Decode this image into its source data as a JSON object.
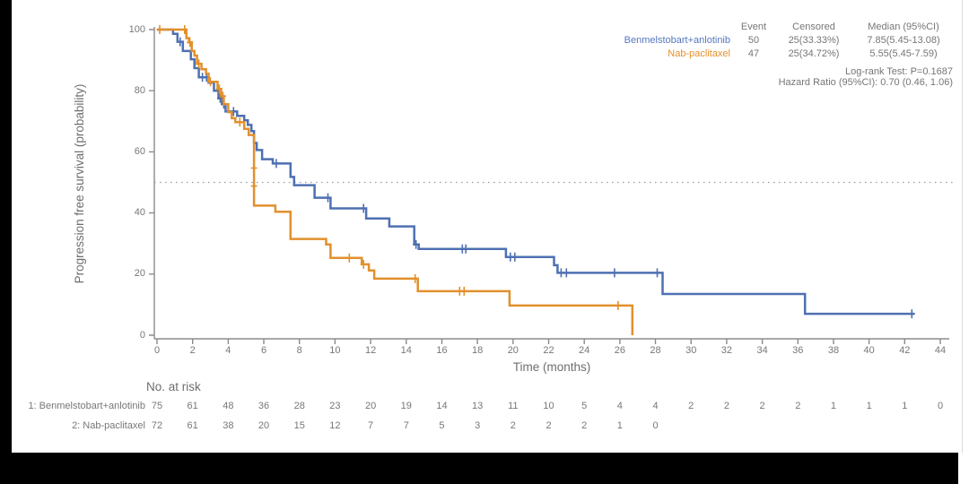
{
  "frame": {
    "background": "#000000",
    "panel": "#ffffff"
  },
  "colors": {
    "series1": "#4e70b2",
    "series2": "#e2902c",
    "axis": "#8b8b8b",
    "text": "#767676",
    "reference_line": "#9a9a9a"
  },
  "chart_data": {
    "type": "line",
    "subtype": "kaplan-meier-step",
    "title": "",
    "xlabel": "Time (months)",
    "ylabel": "Progression free survival (probability)",
    "xlim": [
      0,
      44
    ],
    "ylim": [
      0,
      100
    ],
    "xticks": [
      0,
      2,
      4,
      6,
      8,
      10,
      12,
      14,
      16,
      18,
      20,
      22,
      24,
      26,
      28,
      30,
      32,
      34,
      36,
      38,
      40,
      42,
      44
    ],
    "yticks": [
      0,
      20,
      40,
      60,
      80,
      100
    ],
    "grid": false,
    "reference_line_y": 50,
    "legend_position": "top-right",
    "series": [
      {
        "name": "Benmelstobart+anlotinib",
        "color": "#4e70b2",
        "points": [
          [
            0,
            100
          ],
          [
            0.9,
            98.6
          ],
          [
            1.15,
            96
          ],
          [
            1.45,
            93
          ],
          [
            1.9,
            90.3
          ],
          [
            2.1,
            87.4
          ],
          [
            2.35,
            84.4
          ],
          [
            2.9,
            82.6
          ],
          [
            3.2,
            80
          ],
          [
            3.45,
            77.5
          ],
          [
            3.65,
            75.6
          ],
          [
            3.85,
            73.2
          ],
          [
            4.5,
            71.8
          ],
          [
            4.9,
            70.3
          ],
          [
            5.1,
            68.8
          ],
          [
            5.3,
            66.8
          ],
          [
            5.45,
            62.9
          ],
          [
            5.6,
            60.6
          ],
          [
            5.9,
            57.6
          ],
          [
            6.5,
            56.2
          ],
          [
            7.5,
            51.8
          ],
          [
            7.7,
            49.1
          ],
          [
            8.85,
            45
          ],
          [
            9.75,
            41.5
          ],
          [
            11.75,
            38.2
          ],
          [
            13.05,
            35.6
          ],
          [
            14.45,
            29.7
          ],
          [
            14.7,
            28.2
          ],
          [
            19.6,
            25.6
          ],
          [
            22.3,
            22.9
          ],
          [
            22.5,
            20.4
          ],
          [
            28.4,
            13.5
          ],
          [
            36.4,
            7.0
          ]
        ],
        "curve_end": 42.55,
        "censors": [
          [
            1.3,
            96
          ],
          [
            2.55,
            84.4
          ],
          [
            2.78,
            84.4
          ],
          [
            3.55,
            77.5
          ],
          [
            3.75,
            75.6
          ],
          [
            4.3,
            73.2
          ],
          [
            6.7,
            56.2
          ],
          [
            9.6,
            45
          ],
          [
            11.6,
            41.5
          ],
          [
            14.55,
            29.7
          ],
          [
            17.15,
            28.2
          ],
          [
            17.35,
            28.2
          ],
          [
            19.85,
            25.6
          ],
          [
            20.1,
            25.6
          ],
          [
            22.7,
            20.4
          ],
          [
            23.0,
            20.4
          ],
          [
            25.7,
            20.4
          ],
          [
            28.1,
            20.4
          ],
          [
            42.4,
            7.0
          ]
        ]
      },
      {
        "name": "Nab-paclitaxel",
        "color": "#e2902c",
        "points": [
          [
            0,
            100
          ],
          [
            1.65,
            97.2
          ],
          [
            1.8,
            95.8
          ],
          [
            1.95,
            93
          ],
          [
            2.1,
            91.5
          ],
          [
            2.25,
            88.8
          ],
          [
            2.5,
            87
          ],
          [
            2.75,
            85.6
          ],
          [
            2.9,
            82.9
          ],
          [
            3.4,
            80.6
          ],
          [
            3.6,
            78.2
          ],
          [
            3.75,
            75.6
          ],
          [
            4.0,
            73
          ],
          [
            4.2,
            71
          ],
          [
            4.4,
            69.7
          ],
          [
            4.9,
            67.5
          ],
          [
            5.15,
            65.5
          ],
          [
            5.45,
            42.4
          ],
          [
            6.65,
            40.4
          ],
          [
            7.5,
            31.5
          ],
          [
            9.5,
            29.7
          ],
          [
            9.75,
            25.3
          ],
          [
            11.5,
            23.2
          ],
          [
            11.9,
            21.2
          ],
          [
            12.2,
            18.5
          ],
          [
            14.65,
            14.4
          ],
          [
            19.8,
            9.7
          ],
          [
            26.7,
            0
          ]
        ],
        "curve_end": null,
        "censors": [
          [
            0.15,
            100
          ],
          [
            1.55,
            100
          ],
          [
            1.85,
            95.8
          ],
          [
            2.35,
            88.8
          ],
          [
            3.0,
            82.9
          ],
          [
            3.5,
            80.6
          ],
          [
            3.7,
            78.2
          ],
          [
            4.65,
            69.7
          ],
          [
            5.45,
            54.7
          ],
          [
            5.45,
            48.8
          ],
          [
            10.8,
            25.3
          ],
          [
            11.6,
            23.2
          ],
          [
            14.5,
            18.5
          ],
          [
            17.0,
            14.4
          ],
          [
            17.25,
            14.4
          ],
          [
            25.9,
            9.7
          ]
        ]
      }
    ],
    "legend": {
      "headers": [
        "Event",
        "Censored",
        "Median (95%CI)"
      ],
      "rows": [
        {
          "name": "Benmelstobart+anlotinib",
          "event": "50",
          "censored": "25(33.33%)",
          "median": "7.85(5.45-13.08)"
        },
        {
          "name": "Nab-paclitaxel",
          "event": "47",
          "censored": "25(34.72%)",
          "median": "5.55(5.45-7.59)"
        }
      ]
    },
    "annotations": [
      "Log-rank Test: P=0.1687",
      "Hazard Ratio (95%CI): 0.70 (0.46, 1.06)"
    ],
    "at_risk": {
      "title": "No. at risk",
      "rows": [
        {
          "label": "1: Benmelstobart+anlotinib",
          "values": [
            75,
            61,
            48,
            36,
            28,
            23,
            20,
            19,
            14,
            13,
            11,
            10,
            5,
            4,
            4,
            2,
            2,
            2,
            2,
            1,
            1,
            1,
            0
          ]
        },
        {
          "label": "2: Nab-paclitaxel",
          "values": [
            72,
            61,
            38,
            20,
            15,
            12,
            7,
            7,
            5,
            3,
            2,
            2,
            2,
            1,
            0
          ]
        }
      ]
    }
  }
}
